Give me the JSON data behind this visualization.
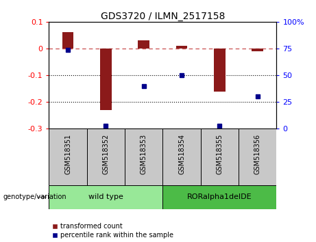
{
  "title": "GDS3720 / ILMN_2517158",
  "samples": [
    "GSM518351",
    "GSM518352",
    "GSM518353",
    "GSM518354",
    "GSM518355",
    "GSM518356"
  ],
  "red_bars": [
    0.06,
    -0.23,
    0.03,
    0.01,
    -0.16,
    -0.01
  ],
  "blue_dots": [
    74,
    3,
    40,
    50,
    3,
    30
  ],
  "left_ylim": [
    -0.3,
    0.1
  ],
  "right_ylim": [
    0,
    100
  ],
  "left_yticks": [
    -0.3,
    -0.2,
    -0.1,
    0.0,
    0.1
  ],
  "left_yticklabels": [
    "-0.3",
    "-0.2",
    "-0.1",
    "0",
    "0.1"
  ],
  "right_yticks": [
    0,
    25,
    50,
    75,
    100
  ],
  "right_yticklabels": [
    "0",
    "25",
    "50",
    "75",
    "100%"
  ],
  "dotted_lines": [
    -0.1,
    -0.2
  ],
  "zero_line": 0.0,
  "groups": [
    {
      "label": "wild type",
      "indices": [
        0,
        1,
        2
      ],
      "color": "#98E898"
    },
    {
      "label": "RORalpha1delDE",
      "indices": [
        3,
        4,
        5
      ],
      "color": "#4CBB47"
    }
  ],
  "genotype_label": "genotype/variation",
  "legend_red": "transformed count",
  "legend_blue": "percentile rank within the sample",
  "bar_color": "#8B1A1A",
  "dot_color": "#00008B",
  "dashed_color": "#CD5C5C",
  "background_color": "#FFFFFF",
  "panel_bg": "#C8C8C8",
  "bar_width": 0.3
}
